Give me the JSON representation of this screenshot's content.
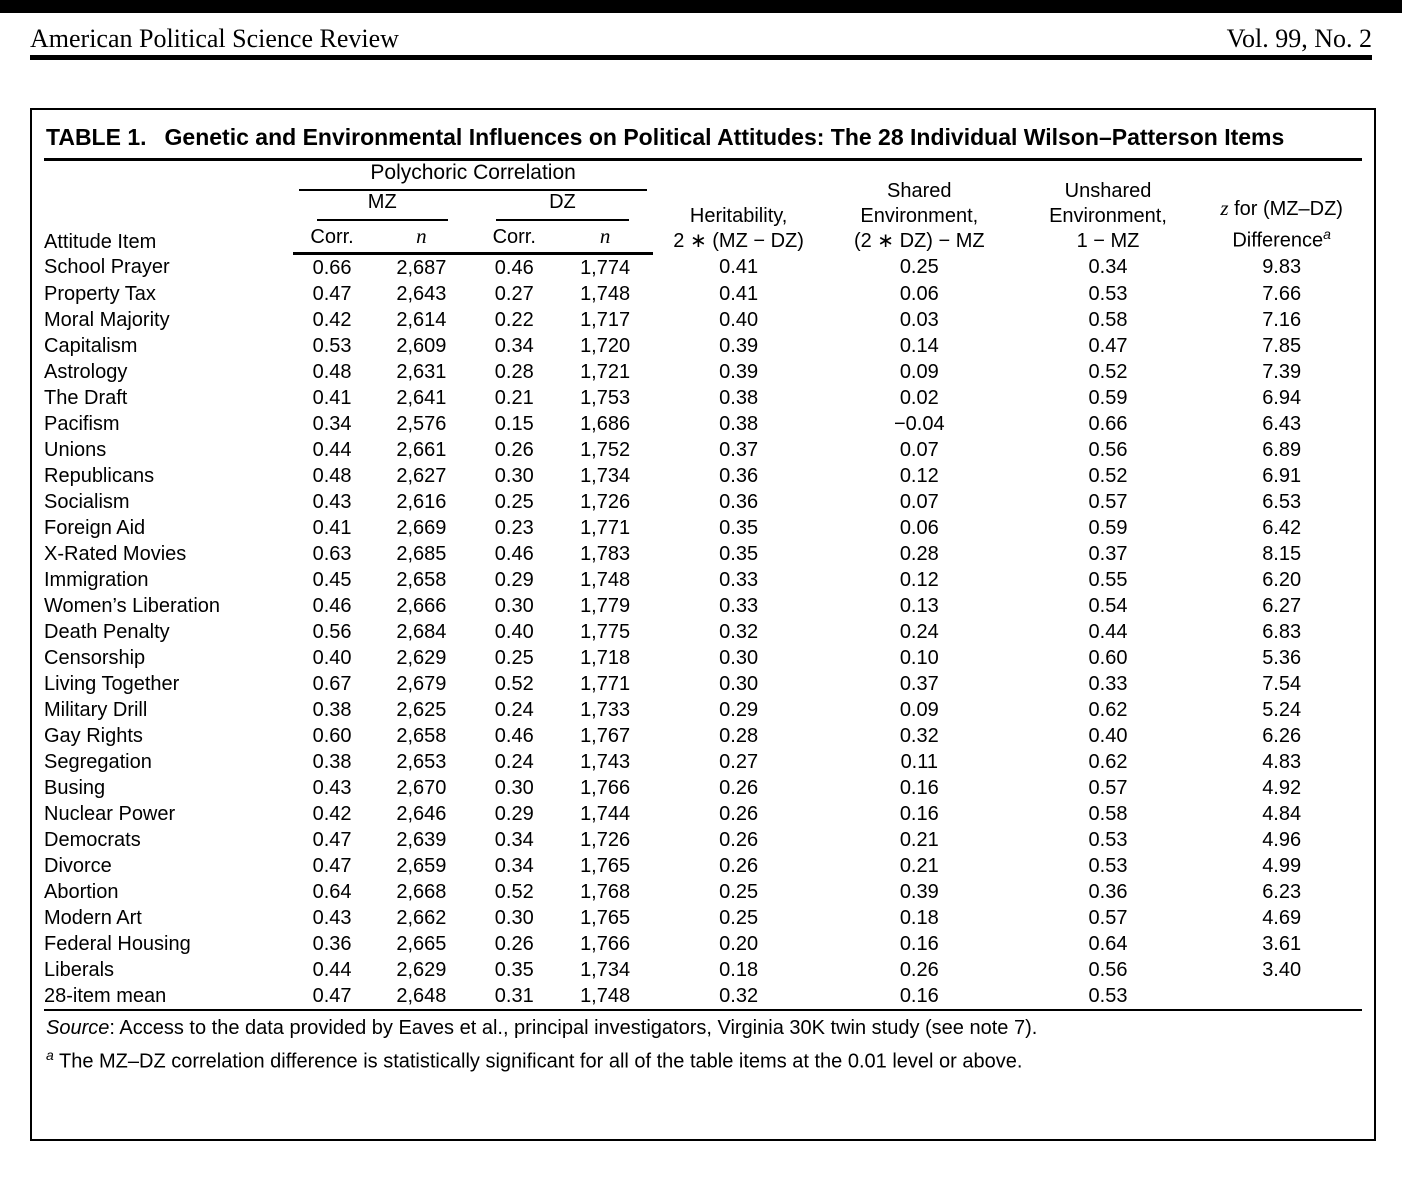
{
  "page_header": {
    "journal": "American Political Science Review",
    "volume": "Vol. 99, No. 2"
  },
  "table": {
    "title_label": "TABLE 1.",
    "title_text": "Genetic and Environmental Influences on Political Attitudes: The 28 Individual Wilson–Patterson Items",
    "headers": {
      "attitude_item": "Attitude Item",
      "polychoric": "Polychoric Correlation",
      "mz": "MZ",
      "dz": "DZ",
      "corr": "Corr.",
      "n": "n",
      "heritability": [
        "Heritability,",
        "2 ∗ (MZ − DZ)"
      ],
      "shared": [
        "Shared",
        "Environment,",
        "(2 ∗ DZ) − MZ"
      ],
      "unshared": [
        "Unshared",
        "Environment,",
        "1 − MZ"
      ],
      "z_italic": "z",
      "z_line1_rest": " for (MZ–DZ)",
      "z_line2": "Difference",
      "z_sup": "a"
    },
    "rows": [
      [
        "School Prayer",
        "0.66",
        "2,687",
        "0.46",
        "1,774",
        "0.41",
        "0.25",
        "0.34",
        "9.83"
      ],
      [
        "Property Tax",
        "0.47",
        "2,643",
        "0.27",
        "1,748",
        "0.41",
        "0.06",
        "0.53",
        "7.66"
      ],
      [
        "Moral Majority",
        "0.42",
        "2,614",
        "0.22",
        "1,717",
        "0.40",
        "0.03",
        "0.58",
        "7.16"
      ],
      [
        "Capitalism",
        "0.53",
        "2,609",
        "0.34",
        "1,720",
        "0.39",
        "0.14",
        "0.47",
        "7.85"
      ],
      [
        "Astrology",
        "0.48",
        "2,631",
        "0.28",
        "1,721",
        "0.39",
        "0.09",
        "0.52",
        "7.39"
      ],
      [
        "The Draft",
        "0.41",
        "2,641",
        "0.21",
        "1,753",
        "0.38",
        "0.02",
        "0.59",
        "6.94"
      ],
      [
        "Pacifism",
        "0.34",
        "2,576",
        "0.15",
        "1,686",
        "0.38",
        "−0.04",
        "0.66",
        "6.43"
      ],
      [
        "Unions",
        "0.44",
        "2,661",
        "0.26",
        "1,752",
        "0.37",
        "0.07",
        "0.56",
        "6.89"
      ],
      [
        "Republicans",
        "0.48",
        "2,627",
        "0.30",
        "1,734",
        "0.36",
        "0.12",
        "0.52",
        "6.91"
      ],
      [
        "Socialism",
        "0.43",
        "2,616",
        "0.25",
        "1,726",
        "0.36",
        "0.07",
        "0.57",
        "6.53"
      ],
      [
        "Foreign Aid",
        "0.41",
        "2,669",
        "0.23",
        "1,771",
        "0.35",
        "0.06",
        "0.59",
        "6.42"
      ],
      [
        "X-Rated Movies",
        "0.63",
        "2,685",
        "0.46",
        "1,783",
        "0.35",
        "0.28",
        "0.37",
        "8.15"
      ],
      [
        "Immigration",
        "0.45",
        "2,658",
        "0.29",
        "1,748",
        "0.33",
        "0.12",
        "0.55",
        "6.20"
      ],
      [
        "Women’s Liberation",
        "0.46",
        "2,666",
        "0.30",
        "1,779",
        "0.33",
        "0.13",
        "0.54",
        "6.27"
      ],
      [
        "Death Penalty",
        "0.56",
        "2,684",
        "0.40",
        "1,775",
        "0.32",
        "0.24",
        "0.44",
        "6.83"
      ],
      [
        "Censorship",
        "0.40",
        "2,629",
        "0.25",
        "1,718",
        "0.30",
        "0.10",
        "0.60",
        "5.36"
      ],
      [
        "Living Together",
        "0.67",
        "2,679",
        "0.52",
        "1,771",
        "0.30",
        "0.37",
        "0.33",
        "7.54"
      ],
      [
        "Military Drill",
        "0.38",
        "2,625",
        "0.24",
        "1,733",
        "0.29",
        "0.09",
        "0.62",
        "5.24"
      ],
      [
        "Gay Rights",
        "0.60",
        "2,658",
        "0.46",
        "1,767",
        "0.28",
        "0.32",
        "0.40",
        "6.26"
      ],
      [
        "Segregation",
        "0.38",
        "2,653",
        "0.24",
        "1,743",
        "0.27",
        "0.11",
        "0.62",
        "4.83"
      ],
      [
        "Busing",
        "0.43",
        "2,670",
        "0.30",
        "1,766",
        "0.26",
        "0.16",
        "0.57",
        "4.92"
      ],
      [
        "Nuclear Power",
        "0.42",
        "2,646",
        "0.29",
        "1,744",
        "0.26",
        "0.16",
        "0.58",
        "4.84"
      ],
      [
        "Democrats",
        "0.47",
        "2,639",
        "0.34",
        "1,726",
        "0.26",
        "0.21",
        "0.53",
        "4.96"
      ],
      [
        "Divorce",
        "0.47",
        "2,659",
        "0.34",
        "1,765",
        "0.26",
        "0.21",
        "0.53",
        "4.99"
      ],
      [
        "Abortion",
        "0.64",
        "2,668",
        "0.52",
        "1,768",
        "0.25",
        "0.39",
        "0.36",
        "6.23"
      ],
      [
        "Modern Art",
        "0.43",
        "2,662",
        "0.30",
        "1,765",
        "0.25",
        "0.18",
        "0.57",
        "4.69"
      ],
      [
        "Federal Housing",
        "0.36",
        "2,665",
        "0.26",
        "1,766",
        "0.20",
        "0.16",
        "0.64",
        "3.61"
      ],
      [
        "Liberals",
        "0.44",
        "2,629",
        "0.35",
        "1,734",
        "0.18",
        "0.26",
        "0.56",
        "3.40"
      ]
    ],
    "mean_row": [
      "28-item mean",
      "0.47",
      "2,648",
      "0.31",
      "1,748",
      "0.32",
      "0.16",
      "0.53",
      ""
    ],
    "footnotes": {
      "source_label": "Source",
      "source_rest": ": Access to the data provided by Eaves et al., principal investigators, Virginia 30K twin study (see note 7).",
      "note_a_sup": "a",
      "note_a_text": " The MZ–DZ correlation difference is statistically significant for all of the table items at the 0.01 level or above."
    }
  }
}
